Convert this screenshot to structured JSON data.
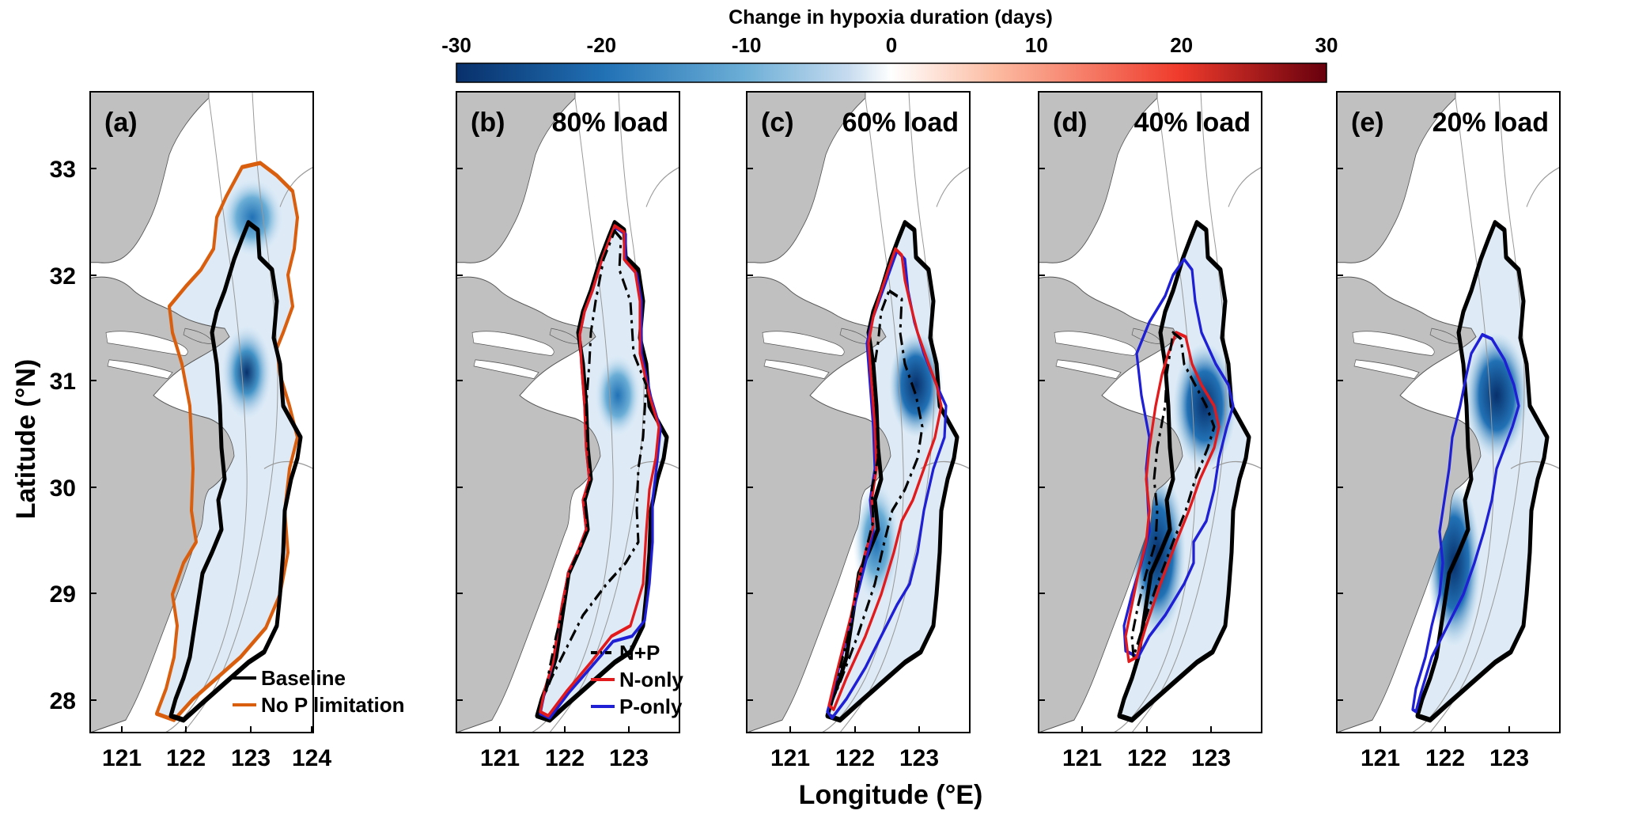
{
  "colorbar": {
    "title": "Change in hypoxia duration (days)",
    "ticks": [
      "-30",
      "-20",
      "-10",
      "0",
      "10",
      "20",
      "30"
    ],
    "stops": [
      "#08306b",
      "#2171b5",
      "#6baed6",
      "#c6dbef",
      "#ffffff",
      "#fcbba1",
      "#ef3b2c",
      "#67000d"
    ]
  },
  "axes": {
    "ylabel": "Latitude (°N)",
    "xlabel": "Longitude (°E)",
    "y_ticks": [
      "33",
      "32",
      "31",
      "30",
      "29",
      "28"
    ],
    "panel_a_x_ticks": [
      "121",
      "122",
      "123",
      "124"
    ],
    "other_x_ticks": [
      "121",
      "122",
      "123"
    ]
  },
  "panels": [
    {
      "tag": "(a)",
      "title": ""
    },
    {
      "tag": "(b)",
      "title": "80% load"
    },
    {
      "tag": "(c)",
      "title": "60% load"
    },
    {
      "tag": "(d)",
      "title": "40% load"
    },
    {
      "tag": "(e)",
      "title": "20% load"
    }
  ],
  "legend_a": [
    {
      "label": "Baseline",
      "color": "#000000",
      "dash": "solid"
    },
    {
      "label": "No P limitation",
      "color": "#d95f0e",
      "dash": "solid"
    }
  ],
  "legend_b": [
    {
      "label": "N+P",
      "color": "#000000",
      "dash": "dashdot"
    },
    {
      "label": "N-only",
      "color": "#e31a1c",
      "dash": "solid"
    },
    {
      "label": "P-only",
      "color": "#1f1fd6",
      "dash": "solid"
    }
  ],
  "colors": {
    "land": "#c0c0c0",
    "baseline": "#000000",
    "no_p": "#d95f0e",
    "n_only": "#e31a1c",
    "p_only": "#1f1fd6"
  }
}
